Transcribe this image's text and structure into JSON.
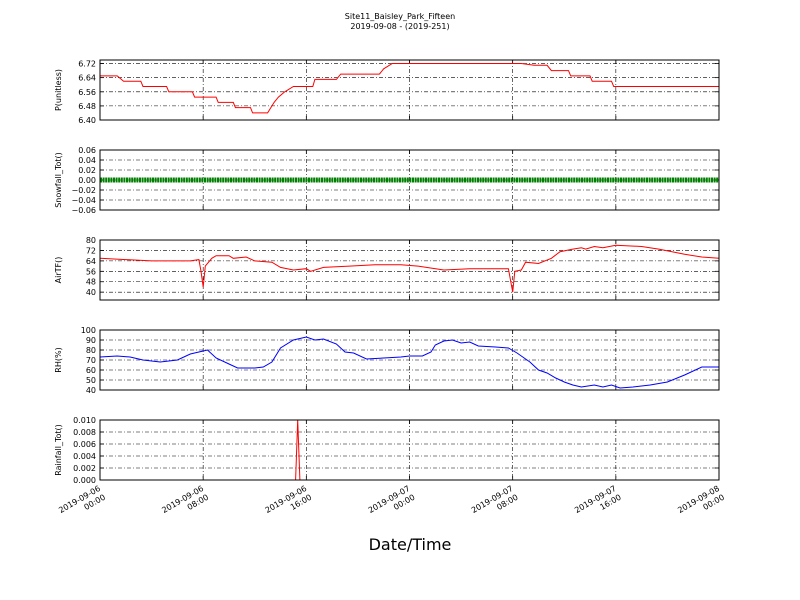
{
  "figure": {
    "title_line1": "Site11_Baisley_Park_Fifteen",
    "title_line2": "2019-09-08 - (2019-251)",
    "xlabel": "Date/Time"
  },
  "chart_data": [
    {
      "type": "line",
      "ylabel": "P(unitless)",
      "ylim": [
        6.4,
        6.74
      ],
      "yticks": [
        "6.40",
        "6.48",
        "6.56",
        "6.64",
        "6.72"
      ],
      "ytick_values": [
        6.4,
        6.48,
        6.56,
        6.64,
        6.72
      ],
      "grid": true,
      "series": [
        {
          "color": "#ff0000",
          "points": [
            [
              0,
              6.65
            ],
            [
              4,
              6.65
            ],
            [
              5.5,
              6.62
            ],
            [
              9.5,
              6.62
            ],
            [
              10,
              6.59
            ],
            [
              15.5,
              6.59
            ],
            [
              16,
              6.56
            ],
            [
              21.5,
              6.56
            ],
            [
              22,
              6.53
            ],
            [
              27,
              6.53
            ],
            [
              27.5,
              6.5
            ],
            [
              31,
              6.5
            ],
            [
              31.5,
              6.47
            ],
            [
              35,
              6.47
            ],
            [
              35.5,
              6.44
            ],
            [
              39,
              6.44
            ],
            [
              40.5,
              6.5
            ],
            [
              41.5,
              6.53
            ],
            [
              43,
              6.56
            ],
            [
              45,
              6.59
            ],
            [
              49.5,
              6.59
            ],
            [
              50,
              6.63
            ],
            [
              55,
              6.63
            ],
            [
              56,
              6.66
            ],
            [
              65,
              6.66
            ],
            [
              66,
              6.69
            ],
            [
              68,
              6.72
            ],
            [
              98,
              6.72
            ],
            [
              101,
              6.71
            ],
            [
              104,
              6.71
            ],
            [
              105,
              6.68
            ],
            [
              109,
              6.68
            ],
            [
              109.5,
              6.65
            ],
            [
              114,
              6.65
            ],
            [
              114.5,
              6.62
            ],
            [
              119,
              6.62
            ],
            [
              119.5,
              6.59
            ],
            [
              138,
              6.59
            ],
            [
              144,
              6.59
            ]
          ]
        }
      ]
    },
    {
      "type": "line",
      "ylabel": "Snowfall_Tot()",
      "ylim": [
        -0.06,
        0.06
      ],
      "yticks": [
        "0.06",
        "0.04",
        "0.02",
        "0.00",
        "−0.02",
        "−0.04",
        "−0.06"
      ],
      "ytick_values": [
        0.06,
        0.04,
        0.02,
        0.0,
        -0.02,
        -0.04,
        -0.06
      ],
      "grid": true,
      "series": [
        {
          "color": "#008000",
          "marker": "dot",
          "points": [
            [
              0,
              0
            ],
            [
              144,
              0
            ]
          ]
        }
      ]
    },
    {
      "type": "line",
      "ylabel": "AirTF()",
      "ylim": [
        34,
        80
      ],
      "yticks": [
        "80",
        "72",
        "64",
        "56",
        "48",
        "40"
      ],
      "ytick_values": [
        80,
        72,
        64,
        56,
        48,
        40
      ],
      "grid": true,
      "series": [
        {
          "color": "#ff0000",
          "points": [
            [
              0,
              66
            ],
            [
              6,
              65
            ],
            [
              12,
              64
            ],
            [
              18,
              64
            ],
            [
              21,
              64
            ],
            [
              23,
              65
            ],
            [
              23.5,
              56
            ],
            [
              24,
              44
            ],
            [
              24.5,
              60
            ],
            [
              26,
              66
            ],
            [
              27,
              68
            ],
            [
              30,
              68
            ],
            [
              31,
              66
            ],
            [
              34,
              67
            ],
            [
              36,
              64
            ],
            [
              40,
              63
            ],
            [
              42,
              59
            ],
            [
              45,
              57
            ],
            [
              48,
              58
            ],
            [
              49,
              56
            ],
            [
              52,
              59
            ],
            [
              58,
              60
            ],
            [
              64,
              61
            ],
            [
              70,
              61
            ],
            [
              74,
              60
            ],
            [
              80,
              57
            ],
            [
              86,
              58
            ],
            [
              95,
              58
            ],
            [
              96,
              40
            ],
            [
              96.5,
              56
            ],
            [
              98,
              57
            ],
            [
              99,
              63
            ],
            [
              102,
              62
            ],
            [
              105,
              66
            ],
            [
              107,
              71
            ],
            [
              110,
              73
            ],
            [
              112,
              74
            ],
            [
              113,
              73
            ],
            [
              115,
              75
            ],
            [
              117,
              74
            ],
            [
              120,
              76
            ],
            [
              126,
              75
            ],
            [
              130,
              73
            ],
            [
              136,
              69
            ],
            [
              140,
              67
            ],
            [
              144,
              66
            ]
          ]
        }
      ]
    },
    {
      "type": "line",
      "ylabel": "RH(%)",
      "ylim": [
        40,
        100
      ],
      "yticks": [
        "100",
        "90",
        "80",
        "70",
        "60",
        "50",
        "40"
      ],
      "ytick_values": [
        100,
        90,
        80,
        70,
        60,
        50,
        40
      ],
      "grid": true,
      "series": [
        {
          "color": "#0000ff",
          "points": [
            [
              0,
              73
            ],
            [
              4,
              74
            ],
            [
              7,
              73
            ],
            [
              10,
              70
            ],
            [
              14,
              68
            ],
            [
              18,
              70
            ],
            [
              21,
              76
            ],
            [
              24,
              79
            ],
            [
              25,
              80
            ],
            [
              27,
              72
            ],
            [
              30,
              66
            ],
            [
              32,
              62
            ],
            [
              36,
              62
            ],
            [
              38,
              63
            ],
            [
              40,
              68
            ],
            [
              42,
              82
            ],
            [
              45,
              90
            ],
            [
              48,
              93
            ],
            [
              50,
              90
            ],
            [
              52,
              91
            ],
            [
              55,
              86
            ],
            [
              57,
              78
            ],
            [
              59,
              77
            ],
            [
              62,
              71
            ],
            [
              66,
              72
            ],
            [
              70,
              73
            ],
            [
              72,
              74
            ],
            [
              75,
              74
            ],
            [
              77,
              78
            ],
            [
              78,
              85
            ],
            [
              80,
              89
            ],
            [
              82,
              90
            ],
            [
              84,
              87
            ],
            [
              86,
              88
            ],
            [
              88,
              84
            ],
            [
              92,
              83
            ],
            [
              95,
              82
            ],
            [
              97,
              77
            ],
            [
              100,
              68
            ],
            [
              102,
              60
            ],
            [
              104,
              57
            ],
            [
              106,
              52
            ],
            [
              108,
              48
            ],
            [
              110,
              45
            ],
            [
              112,
              43
            ],
            [
              115,
              45
            ],
            [
              117,
              43
            ],
            [
              119,
              45
            ],
            [
              121,
              42
            ],
            [
              124,
              43
            ],
            [
              128,
              45
            ],
            [
              132,
              48
            ],
            [
              136,
              55
            ],
            [
              140,
              63
            ],
            [
              144,
              63
            ]
          ]
        }
      ]
    },
    {
      "type": "line",
      "ylabel": "Rainfall_Tot()",
      "ylim": [
        0,
        0.01
      ],
      "yticks": [
        "0.010",
        "0.008",
        "0.006",
        "0.004",
        "0.002",
        "0.000"
      ],
      "ytick_values": [
        0.01,
        0.008,
        0.006,
        0.004,
        0.002,
        0.0
      ],
      "grid": true,
      "series": [
        {
          "color": "#ff0000",
          "points": [
            [
              0,
              0
            ],
            [
              45.5,
              0
            ],
            [
              46,
              0.01
            ],
            [
              46.5,
              0
            ],
            [
              144,
              0
            ]
          ]
        }
      ]
    }
  ],
  "xaxis": {
    "range": [
      "2019-09-06 00:00",
      "2019-09-08 00:00"
    ],
    "tick_labels": [
      {
        "line1": "2019-09-06",
        "line2": "00:00"
      },
      {
        "line1": "2019-09-06",
        "line2": "08:00"
      },
      {
        "line1": "2019-09-06",
        "line2": "16:00"
      },
      {
        "line1": "2019-09-07",
        "line2": "00:00"
      },
      {
        "line1": "2019-09-07",
        "line2": "08:00"
      },
      {
        "line1": "2019-09-07",
        "line2": "16:00"
      },
      {
        "line1": "2019-09-08",
        "line2": "00:00"
      }
    ]
  }
}
